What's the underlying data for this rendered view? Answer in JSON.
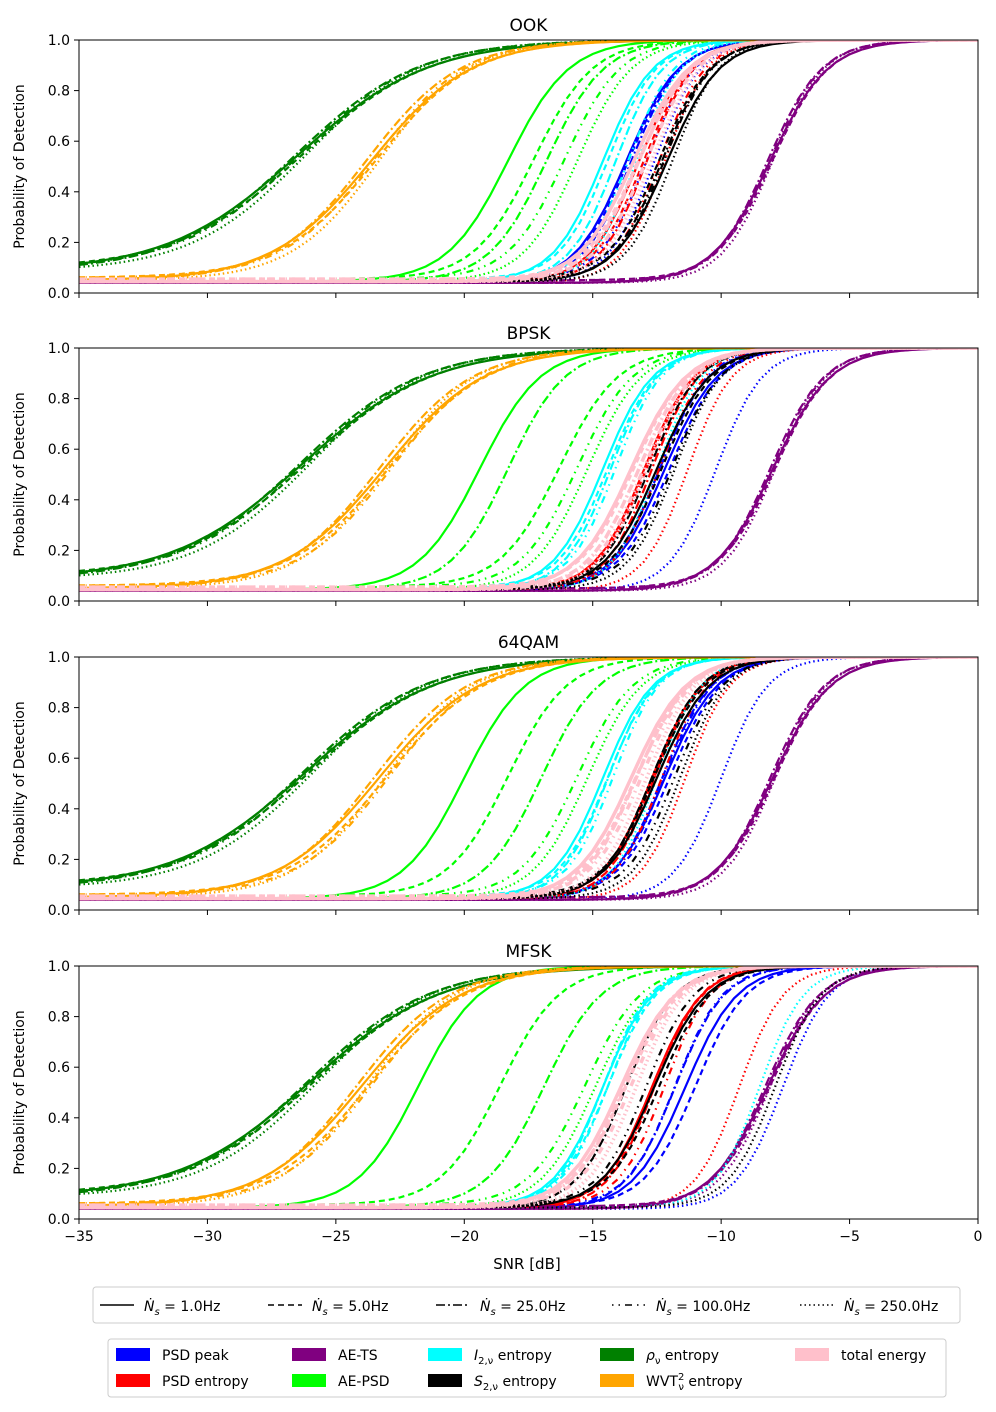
{
  "figure": {
    "xlabel": "SNR [dB]",
    "ylabel": "Probability of Detection"
  },
  "legend_linestyles": {
    "prefix": "Ṅ",
    "items": [
      {
        "style": "solid",
        "label": "1.0Hz"
      },
      {
        "style": "dashed",
        "label": "5.0Hz"
      },
      {
        "style": "dashdot",
        "label": "25.0Hz"
      },
      {
        "style": "loosedashdot",
        "label": "100.0Hz"
      },
      {
        "style": "dotted",
        "label": "250.0Hz"
      }
    ]
  },
  "legend_methods": {
    "items": [
      {
        "key": "psd_peak",
        "label": "PSD peak",
        "color": "#0000ff"
      },
      {
        "key": "psd_entropy",
        "label": "PSD entropy",
        "color": "#ff0000"
      },
      {
        "key": "ae_ts",
        "label": "AE-TS",
        "color": "#800080"
      },
      {
        "key": "ae_psd",
        "label": "AE-PSD",
        "color": "#00ff00"
      },
      {
        "key": "i2",
        "label": "I2,ν entropy",
        "color": "#00ffff"
      },
      {
        "key": "s2",
        "label": "S2,ν entropy",
        "color": "#000000"
      },
      {
        "key": "rho",
        "label": "ρν entropy",
        "color": "#008000"
      },
      {
        "key": "wvt",
        "label": "WVT2ν entropy",
        "color": "#ffa500"
      },
      {
        "key": "total",
        "label": "total energy",
        "color": "#ffc0cb"
      }
    ]
  },
  "chart_data": [
    {
      "type": "line",
      "title": "OOK",
      "xlabel": "SNR [dB]",
      "ylabel": "Probability of Detection",
      "xlim": [
        -35,
        0
      ],
      "ylim": [
        0.0,
        1.0
      ],
      "xticks": [
        -35,
        -30,
        -25,
        -20,
        -15,
        -10,
        -5,
        0
      ],
      "yticks": [
        0.0,
        0.2,
        0.4,
        0.6,
        0.8,
        1.0
      ],
      "midpoints": {
        "rho": [
          -26.5,
          -26.3,
          -26.6,
          -26.4,
          -26.2
        ],
        "wvt": [
          -23.6,
          -23.4,
          -23.8,
          -23.5,
          -23.3
        ],
        "ae_psd": [
          -18.3,
          -17.3,
          -16.8,
          -16.1,
          -15.6
        ],
        "i2": [
          -14.6,
          -14.4,
          -14.1,
          -13.6,
          -13.3
        ],
        "psd_peak": [
          -13.7,
          -13.6,
          -13.5,
          -12.9,
          -12.6
        ],
        "psd_entropy": [
          -13.2,
          -13.0,
          -12.9,
          -12.4,
          -12.2
        ],
        "total": [
          -13.4,
          -13.2,
          -13.2,
          -12.9,
          -12.7
        ],
        "s2": [
          -12.1,
          -12.4,
          -12.3,
          -12.2,
          -11.9
        ],
        "ae_ts": [
          -8.1,
          -8.0,
          -8.2,
          -8.1,
          -8.0
        ]
      }
    },
    {
      "type": "line",
      "title": "BPSK",
      "xlabel": "SNR [dB]",
      "ylabel": "Probability of Detection",
      "xlim": [
        -35,
        0
      ],
      "ylim": [
        0.0,
        1.0
      ],
      "xticks": [
        -35,
        -30,
        -25,
        -20,
        -15,
        -10,
        -5,
        0
      ],
      "yticks": [
        0.0,
        0.2,
        0.4,
        0.6,
        0.8,
        1.0
      ],
      "midpoints": {
        "rho": [
          -26.3,
          -26.1,
          -26.4,
          -26.2,
          -26.0
        ],
        "wvt": [
          -23.1,
          -22.9,
          -23.3,
          -22.8,
          -23.0
        ],
        "ae_psd": [
          -19.4,
          -16.3,
          -18.3,
          -15.6,
          -15.2
        ],
        "i2": [
          -14.6,
          -14.4,
          -14.3,
          -14.1,
          -12.5
        ],
        "psd_peak": [
          -12.2,
          -12.0,
          -12.4,
          -12.4,
          -10.2
        ],
        "psd_entropy": [
          -13.0,
          -12.9,
          -12.7,
          -12.4,
          -11.3
        ],
        "total": [
          -13.5,
          -13.4,
          -13.2,
          -13.0,
          -12.9
        ],
        "s2": [
          -12.5,
          -12.3,
          -12.8,
          -11.9,
          -11.8
        ],
        "ae_ts": [
          -8.0,
          -7.9,
          -8.1,
          -8.0,
          -7.9
        ]
      }
    },
    {
      "type": "line",
      "title": "64QAM",
      "xlabel": "SNR [dB]",
      "ylabel": "Probability of Detection",
      "xlim": [
        -35,
        0
      ],
      "ylim": [
        0.0,
        1.0
      ],
      "xticks": [
        -35,
        -30,
        -25,
        -20,
        -15,
        -10,
        -5,
        0
      ],
      "yticks": [
        0.0,
        0.2,
        0.4,
        0.6,
        0.8,
        1.0
      ],
      "midpoints": {
        "rho": [
          -26.2,
          -26.0,
          -26.3,
          -26.1,
          -25.9
        ],
        "wvt": [
          -23.3,
          -23.0,
          -23.5,
          -22.9,
          -23.1
        ],
        "ae_psd": [
          -20.0,
          -18.3,
          -17.0,
          -15.6,
          -15.2
        ],
        "i2": [
          -14.6,
          -14.4,
          -14.4,
          -14.2,
          -12.5
        ],
        "psd_peak": [
          -12.2,
          -12.0,
          -12.3,
          -12.2,
          -10.0
        ],
        "psd_entropy": [
          -12.7,
          -12.6,
          -12.6,
          -12.3,
          -11.4
        ],
        "total": [
          -13.5,
          -13.3,
          -13.3,
          -13.1,
          -12.9
        ],
        "s2": [
          -12.5,
          -12.6,
          -12.7,
          -11.8,
          -11.6
        ],
        "ae_ts": [
          -8.0,
          -7.9,
          -8.1,
          -8.0,
          -7.9
        ]
      }
    },
    {
      "type": "line",
      "title": "MFSK",
      "xlabel": "SNR [dB]",
      "ylabel": "Probability of Detection",
      "xlim": [
        -35,
        0
      ],
      "ylim": [
        0.0,
        1.0
      ],
      "xticks": [
        -35,
        -30,
        -25,
        -20,
        -15,
        -10,
        -5,
        0
      ],
      "yticks": [
        0.0,
        0.2,
        0.4,
        0.6,
        0.8,
        1.0
      ],
      "midpoints": {
        "rho": [
          -26.0,
          -25.8,
          -26.1,
          -25.9,
          -25.7
        ],
        "wvt": [
          -24.0,
          -23.7,
          -24.2,
          -23.6,
          -23.8
        ],
        "ae_psd": [
          -21.8,
          -18.6,
          -16.9,
          -15.3,
          -14.9
        ],
        "i2": [
          -14.6,
          -14.4,
          -14.6,
          -14.4,
          -8.5
        ],
        "psd_peak": [
          -11.4,
          -11.0,
          -11.8,
          -11.8,
          -7.6
        ],
        "psd_entropy": [
          -12.7,
          -12.6,
          -12.6,
          -12.2,
          -9.3
        ],
        "total": [
          -13.9,
          -13.7,
          -13.8,
          -13.5,
          -13.3
        ],
        "s2": [
          -12.6,
          -12.4,
          -13.7,
          -12.9,
          -7.9
        ],
        "ae_ts": [
          -8.2,
          -8.1,
          -8.3,
          -8.2,
          -8.1
        ]
      }
    }
  ]
}
